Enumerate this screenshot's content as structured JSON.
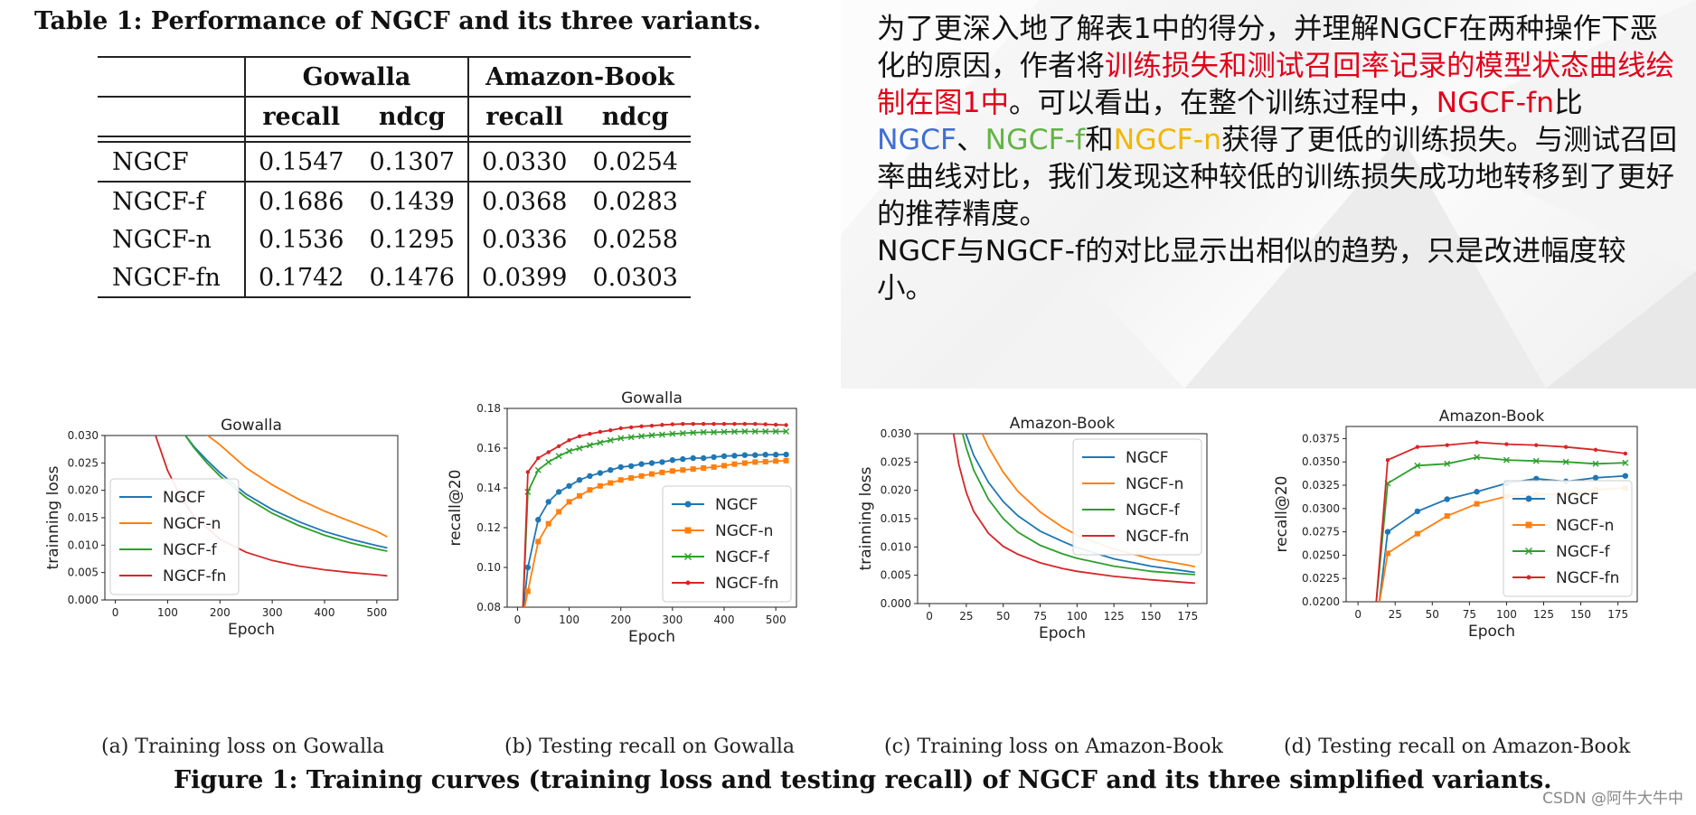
{
  "table": {
    "title": "Table 1: Performance of NGCF and its three variants.",
    "group_headers": [
      "Gowalla",
      "Amazon-Book"
    ],
    "sub_headers": [
      "recall",
      "ndcg",
      "recall",
      "ndcg"
    ],
    "rows": [
      {
        "name": "NGCF",
        "values": [
          "0.1547",
          "0.1307",
          "0.0330",
          "0.0254"
        ]
      },
      {
        "name": "NGCF-f",
        "values": [
          "0.1686",
          "0.1439",
          "0.0368",
          "0.0283"
        ]
      },
      {
        "name": "NGCF-n",
        "values": [
          "0.1536",
          "0.1295",
          "0.0336",
          "0.0258"
        ]
      },
      {
        "name": "NGCF-fn",
        "values": [
          "0.1742",
          "0.1476",
          "0.0399",
          "0.0303"
        ]
      }
    ]
  },
  "explanation": {
    "p1": "为了更深入地了解表1中的得分，并理解NGCF在两种操作下恶化的原因，作者将",
    "p1_red": "训练损失和测试召回率记录的模型状态曲线绘制在图1中",
    "p2": "。可以看出，在整个训练过程中，",
    "fn": "NGCF-fn",
    "bi": "比",
    "ngcf": "NGCF",
    "dun": "、",
    "f": "NGCF-f",
    "he": "和",
    "n": "NGCF-n",
    "p3": "获得了更低的训练损失。与测试召回率曲线对比，我们发现这种较低的训练损失成功地转移到了更好的推荐精度。",
    "p4": "NGCF与NGCF-f的对比显示出相似的趋势，只是改进幅度较小。"
  },
  "colors": {
    "NGCF": "#1f77b4",
    "NGCF-n": "#ff7f0e",
    "NGCF-f": "#2ca02c",
    "NGCF-fn": "#d62728"
  },
  "chart_data": [
    {
      "type": "line",
      "title": "Gowalla",
      "xlabel": "Epoch",
      "ylabel": "trainning loss",
      "xlim": [
        -20,
        540
      ],
      "ylim": [
        0.0,
        0.03
      ],
      "xticks": [
        0,
        100,
        200,
        300,
        400,
        500
      ],
      "yticks": [
        0.0,
        0.005,
        0.01,
        0.015,
        0.02,
        0.025,
        0.03
      ],
      "ytick_labels": [
        "0.000",
        "0.005",
        "0.010",
        "0.015",
        "0.020",
        "0.025",
        "0.030"
      ],
      "legend": "lower-left",
      "markers": false,
      "caption": "(a)  Training loss on Gowalla",
      "series": [
        {
          "name": "NGCF",
          "x": [
            130,
            150,
            175,
            200,
            250,
            300,
            350,
            400,
            450,
            500,
            520
          ],
          "y": [
            0.0305,
            0.028,
            0.0255,
            0.0232,
            0.0193,
            0.0165,
            0.0143,
            0.0125,
            0.0111,
            0.0099,
            0.0095
          ]
        },
        {
          "name": "NGCF-n",
          "x": [
            170,
            200,
            250,
            300,
            350,
            400,
            450,
            500,
            520
          ],
          "y": [
            0.0305,
            0.0283,
            0.0241,
            0.021,
            0.0184,
            0.0162,
            0.0143,
            0.0125,
            0.0115
          ]
        },
        {
          "name": "NGCF-f",
          "x": [
            130,
            150,
            175,
            200,
            250,
            300,
            350,
            400,
            450,
            500,
            520
          ],
          "y": [
            0.0305,
            0.0278,
            0.025,
            0.0226,
            0.0187,
            0.0158,
            0.0136,
            0.0118,
            0.0104,
            0.0093,
            0.0089
          ]
        },
        {
          "name": "NGCF-fn",
          "x": [
            75,
            100,
            125,
            150,
            200,
            250,
            300,
            350,
            400,
            450,
            500,
            520
          ],
          "y": [
            0.0305,
            0.0236,
            0.0188,
            0.0153,
            0.0111,
            0.0087,
            0.0072,
            0.0062,
            0.0055,
            0.005,
            0.0046,
            0.0044
          ]
        }
      ]
    },
    {
      "type": "line",
      "title": "Gowalla",
      "xlabel": "Epoch",
      "ylabel": "recall@20",
      "xlim": [
        -20,
        540
      ],
      "ylim": [
        0.08,
        0.18
      ],
      "xticks": [
        0,
        100,
        200,
        300,
        400,
        500
      ],
      "yticks": [
        0.08,
        0.1,
        0.12,
        0.14,
        0.16,
        0.18
      ],
      "ytick_labels": [
        "0.08",
        "0.10",
        "0.12",
        "0.14",
        "0.16",
        "0.18"
      ],
      "legend": "lower-right",
      "markers": true,
      "caption": "(b)  Testing recall on Gowalla",
      "series": [
        {
          "name": "NGCF",
          "x": [
            10,
            20,
            40,
            60,
            80,
            100,
            120,
            140,
            160,
            180,
            200,
            220,
            240,
            260,
            280,
            300,
            320,
            340,
            360,
            380,
            400,
            420,
            440,
            460,
            480,
            500,
            520
          ],
          "y": [
            0.075,
            0.1,
            0.124,
            0.133,
            0.138,
            0.141,
            0.144,
            0.146,
            0.1475,
            0.149,
            0.1505,
            0.151,
            0.152,
            0.1525,
            0.153,
            0.154,
            0.1545,
            0.155,
            0.155,
            0.1555,
            0.156,
            0.1562,
            0.1565,
            0.1565,
            0.1567,
            0.1567,
            0.1568
          ]
        },
        {
          "name": "NGCF-n",
          "x": [
            10,
            20,
            40,
            60,
            80,
            100,
            120,
            140,
            160,
            180,
            200,
            220,
            240,
            260,
            280,
            300,
            320,
            340,
            360,
            380,
            400,
            420,
            440,
            460,
            480,
            500,
            520
          ],
          "y": [
            0.075,
            0.088,
            0.113,
            0.122,
            0.128,
            0.133,
            0.136,
            0.139,
            0.141,
            0.1425,
            0.144,
            0.145,
            0.146,
            0.147,
            0.1478,
            0.1485,
            0.149,
            0.1495,
            0.15,
            0.1505,
            0.1512,
            0.152,
            0.1525,
            0.153,
            0.1532,
            0.1535,
            0.1537
          ]
        },
        {
          "name": "NGCF-f",
          "x": [
            10,
            20,
            40,
            60,
            80,
            100,
            120,
            140,
            160,
            180,
            200,
            220,
            240,
            260,
            280,
            300,
            320,
            340,
            360,
            380,
            400,
            420,
            440,
            460,
            480,
            500,
            520
          ],
          "y": [
            0.075,
            0.138,
            0.149,
            0.153,
            0.156,
            0.1585,
            0.16,
            0.1615,
            0.1628,
            0.164,
            0.165,
            0.1655,
            0.166,
            0.1665,
            0.1668,
            0.1672,
            0.1675,
            0.1678,
            0.168,
            0.168,
            0.1682,
            0.1683,
            0.1684,
            0.1684,
            0.1684,
            0.1684,
            0.1684
          ]
        },
        {
          "name": "NGCF-fn",
          "x": [
            10,
            20,
            40,
            60,
            80,
            100,
            120,
            140,
            160,
            180,
            200,
            220,
            240,
            260,
            280,
            300,
            320,
            340,
            360,
            380,
            400,
            420,
            440,
            460,
            480,
            500,
            520
          ],
          "y": [
            0.075,
            0.148,
            0.155,
            0.158,
            0.161,
            0.164,
            0.166,
            0.1672,
            0.1682,
            0.169,
            0.17,
            0.1705,
            0.171,
            0.1713,
            0.1717,
            0.172,
            0.1722,
            0.1722,
            0.1722,
            0.1722,
            0.1722,
            0.1722,
            0.1722,
            0.1722,
            0.172,
            0.1718,
            0.1716
          ]
        }
      ]
    },
    {
      "type": "line",
      "title": "Amazon-Book",
      "xlabel": "Epoch",
      "ylabel": "trainning loss",
      "xlim": [
        -8,
        188
      ],
      "ylim": [
        0.0,
        0.03
      ],
      "xticks": [
        0,
        25,
        50,
        75,
        100,
        125,
        150,
        175
      ],
      "yticks": [
        0.0,
        0.005,
        0.01,
        0.015,
        0.02,
        0.025,
        0.03
      ],
      "ytick_labels": [
        "0.000",
        "0.005",
        "0.010",
        "0.015",
        "0.020",
        "0.025",
        "0.030"
      ],
      "legend": "upper-right",
      "markers": false,
      "caption": "(c)  Training loss on Amazon-Book",
      "series": [
        {
          "name": "NGCF",
          "x": [
            24,
            30,
            40,
            50,
            60,
            75,
            90,
            100,
            125,
            150,
            175,
            180
          ],
          "y": [
            0.0305,
            0.0262,
            0.0214,
            0.018,
            0.0155,
            0.0128,
            0.011,
            0.0099,
            0.0079,
            0.0066,
            0.0057,
            0.0055
          ]
        },
        {
          "name": "NGCF-n",
          "x": [
            35,
            40,
            50,
            60,
            75,
            90,
            100,
            125,
            150,
            175,
            180
          ],
          "y": [
            0.0305,
            0.0276,
            0.0232,
            0.0198,
            0.0162,
            0.0135,
            0.0121,
            0.0096,
            0.0079,
            0.0068,
            0.0065
          ]
        },
        {
          "name": "NGCF-f",
          "x": [
            22,
            25,
            30,
            40,
            50,
            60,
            75,
            90,
            100,
            125,
            150,
            175,
            180
          ],
          "y": [
            0.0305,
            0.0275,
            0.0236,
            0.0184,
            0.015,
            0.0126,
            0.0103,
            0.0088,
            0.008,
            0.0066,
            0.0057,
            0.0052,
            0.0051
          ]
        },
        {
          "name": "NGCF-fn",
          "x": [
            16,
            20,
            25,
            30,
            40,
            50,
            60,
            75,
            90,
            100,
            125,
            150,
            175,
            180
          ],
          "y": [
            0.0305,
            0.0245,
            0.0196,
            0.0163,
            0.0124,
            0.0101,
            0.0087,
            0.0072,
            0.0062,
            0.0057,
            0.0048,
            0.0042,
            0.0037,
            0.0036
          ]
        }
      ]
    },
    {
      "type": "line",
      "title": "Amazon-Book",
      "xlabel": "Epoch",
      "ylabel": "recall@20",
      "xlim": [
        -8,
        188
      ],
      "ylim": [
        0.02,
        0.0388
      ],
      "xticks": [
        0,
        25,
        50,
        75,
        100,
        125,
        150,
        175
      ],
      "yticks": [
        0.02,
        0.0225,
        0.025,
        0.0275,
        0.03,
        0.0325,
        0.035,
        0.0375
      ],
      "ytick_labels": [
        "0.0200",
        "0.0225",
        "0.0250",
        "0.0275",
        "0.0300",
        "0.0325",
        "0.0350",
        "0.0375"
      ],
      "legend": "lower-right",
      "markers": true,
      "caption": "(d)  Testing recall on Amazon-Book",
      "series": [
        {
          "name": "NGCF",
          "x": [
            14,
            20,
            40,
            60,
            80,
            100,
            120,
            140,
            160,
            180
          ],
          "y": [
            0.0195,
            0.0275,
            0.0297,
            0.031,
            0.0318,
            0.0327,
            0.0332,
            0.0329,
            0.0333,
            0.0335
          ]
        },
        {
          "name": "NGCF-n",
          "x": [
            14,
            20,
            40,
            60,
            80,
            100,
            120,
            140,
            160,
            180
          ],
          "y": [
            0.0195,
            0.0252,
            0.0273,
            0.0292,
            0.0305,
            0.0313,
            0.0315,
            0.0315,
            0.032,
            0.0322
          ]
        },
        {
          "name": "NGCF-f",
          "x": [
            12,
            20,
            40,
            60,
            80,
            100,
            120,
            140,
            160,
            180
          ],
          "y": [
            0.0195,
            0.0327,
            0.0346,
            0.0348,
            0.0355,
            0.0352,
            0.0351,
            0.035,
            0.0348,
            0.0349
          ]
        },
        {
          "name": "NGCF-fn",
          "x": [
            12,
            20,
            40,
            60,
            80,
            100,
            120,
            140,
            160,
            180
          ],
          "y": [
            0.0195,
            0.0352,
            0.0366,
            0.0368,
            0.0371,
            0.0369,
            0.0368,
            0.0366,
            0.0363,
            0.0359
          ]
        }
      ]
    }
  ],
  "figure_caption": "Figure 1: Training curves (training loss and testing recall) of NGCF and its three simplified variants.",
  "watermark": "CSDN @阿牛大牛中"
}
